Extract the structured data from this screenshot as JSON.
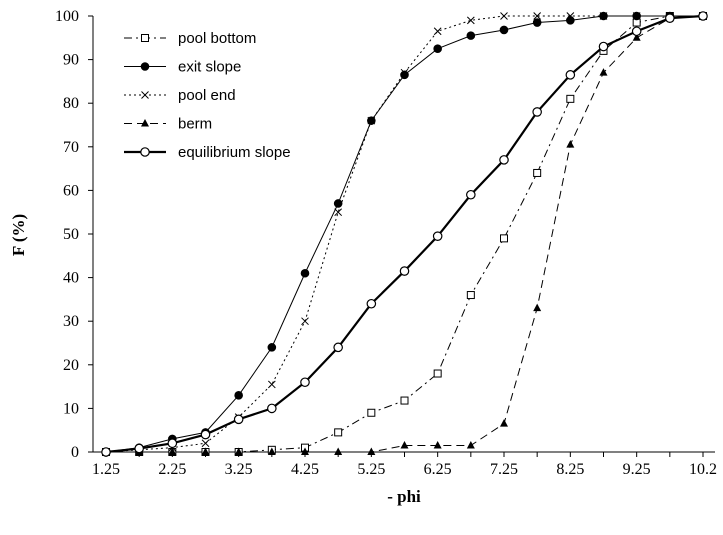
{
  "chart_data": {
    "type": "line",
    "title": "",
    "xlabel": "- phi",
    "ylabel": "F (%)",
    "x_tick_labels": [
      "1.25",
      "2.25",
      "3.25",
      "4.25",
      "5.25",
      "6.25",
      "7.25",
      "8.25",
      "9.25",
      "10.2"
    ],
    "y_tick_labels": [
      "0",
      "10",
      "20",
      "30",
      "40",
      "50",
      "60",
      "70",
      "80",
      "90",
      "100"
    ],
    "xlim": [
      1.25,
      10.25
    ],
    "ylim": [
      0,
      100
    ],
    "grid": false,
    "legend_position": "top-left",
    "x": [
      1.25,
      1.75,
      2.25,
      2.75,
      3.25,
      3.75,
      4.25,
      4.75,
      5.25,
      5.75,
      6.25,
      6.75,
      7.25,
      7.75,
      8.25,
      8.75,
      9.25,
      9.75,
      10.25
    ],
    "series": [
      {
        "name": "pool bottom",
        "style": "dashdot",
        "marker": "square-open",
        "values": [
          0,
          0,
          0,
          0,
          0,
          0.5,
          1,
          4.5,
          9,
          11.8,
          18,
          36,
          49,
          64,
          81,
          92,
          98.5,
          100,
          100
        ]
      },
      {
        "name": "exit slope",
        "style": "solid",
        "marker": "circle-filled",
        "values": [
          0,
          1,
          3,
          4.5,
          13,
          24,
          41,
          57,
          76,
          86.5,
          92.5,
          95.5,
          96.8,
          98.5,
          99,
          100,
          100,
          100,
          100
        ]
      },
      {
        "name": "pool end",
        "style": "dotted",
        "marker": "x",
        "values": [
          0,
          0.5,
          1,
          2,
          8,
          15.5,
          30,
          55,
          76,
          87,
          96.5,
          99,
          100,
          100,
          100,
          100,
          100,
          100,
          100
        ]
      },
      {
        "name": "berm",
        "style": "dashed",
        "marker": "triangle-filled",
        "values": [
          0,
          0,
          0,
          0,
          0,
          0,
          0,
          0,
          0,
          1.5,
          1.5,
          1.5,
          6.5,
          33,
          70.5,
          87,
          95,
          99.5,
          100
        ]
      },
      {
        "name": "equilibrium slope",
        "style": "solid-thick",
        "marker": "circle-open",
        "values": [
          0,
          0.8,
          2,
          4,
          7.5,
          10,
          16,
          24,
          34,
          41.5,
          49.5,
          59,
          67,
          78,
          86.5,
          93,
          96.5,
          99.5,
          100
        ]
      }
    ]
  }
}
